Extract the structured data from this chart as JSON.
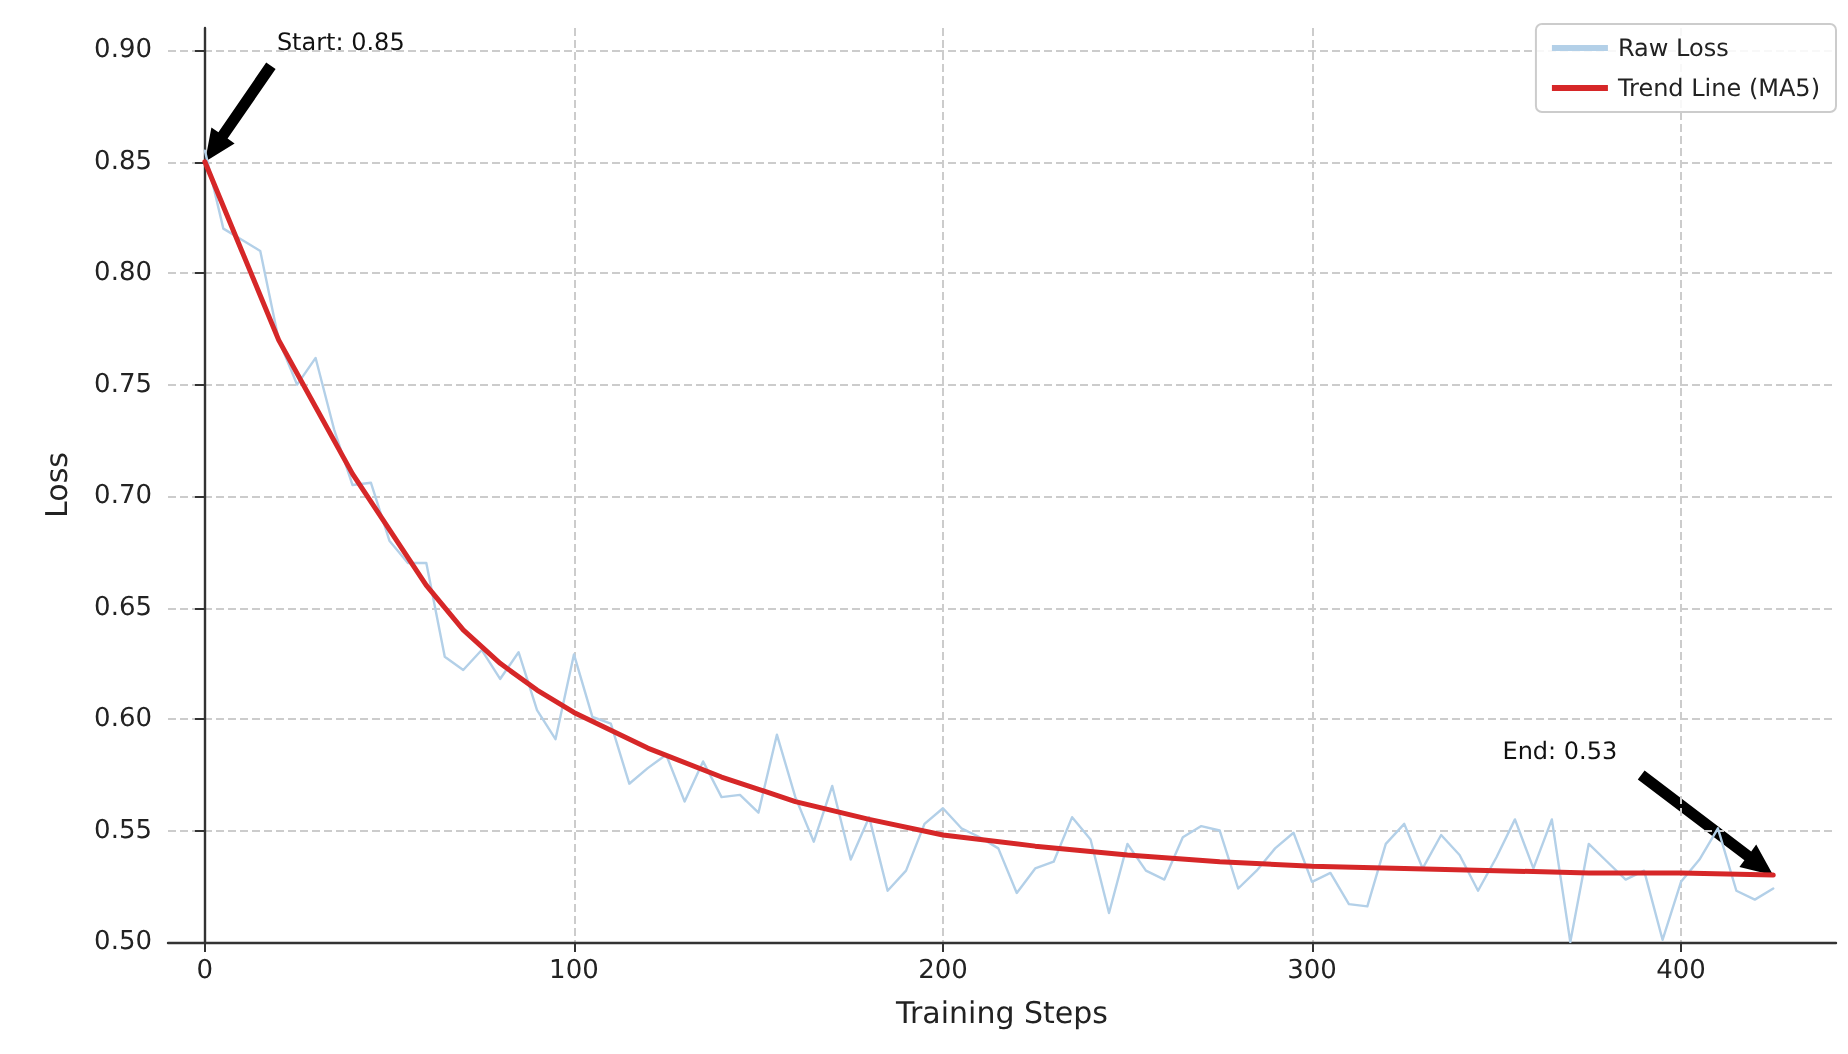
{
  "chart_data": {
    "type": "line",
    "xlabel": "Training Steps",
    "ylabel": "Loss",
    "xlim": [
      -10,
      442
    ],
    "xticks": [
      0,
      100,
      200,
      300,
      400
    ],
    "ylim": [
      0.5,
      0.91
    ],
    "yticks": [
      {
        "value": 0.5,
        "label": "0.50"
      },
      0.55,
      {
        "value": 0.6,
        "label": "0.60"
      },
      0.65,
      {
        "value": 0.7,
        "label": "0.70"
      },
      0.75,
      {
        "value": 0.8,
        "label": "0.80"
      },
      0.85,
      {
        "value": 0.9,
        "label": "0.90"
      }
    ],
    "grid": true,
    "legend": "top right",
    "marker": "none",
    "line_style": "solid",
    "annotations": [
      "Start: 0.85",
      "End: 0.53"
    ],
    "series": [
      {
        "name": "Raw Loss",
        "color": "#b3d0e8",
        "x": [
          0,
          5,
          10,
          15,
          20,
          25,
          30,
          35,
          40,
          45,
          50,
          55,
          60,
          65,
          70,
          75,
          80,
          85,
          90,
          95,
          100,
          105,
          110,
          115,
          120,
          125,
          130,
          135,
          140,
          145,
          150,
          155,
          160,
          165,
          170,
          175,
          180,
          185,
          190,
          195,
          200,
          205,
          210,
          215,
          220,
          225,
          230,
          235,
          240,
          245,
          250,
          255,
          260,
          265,
          270,
          275,
          280,
          285,
          290,
          295,
          300,
          305,
          310,
          315,
          320,
          325,
          330,
          335,
          340,
          345,
          350,
          355,
          360,
          365,
          370,
          375,
          380,
          385,
          390,
          395,
          400,
          405,
          410,
          415,
          420,
          425
        ],
        "values": [
          0.855,
          0.82,
          0.815,
          0.81,
          0.77,
          0.75,
          0.762,
          0.73,
          0.705,
          0.706,
          0.68,
          0.67,
          0.67,
          0.628,
          0.622,
          0.631,
          0.618,
          0.63,
          0.604,
          0.591,
          0.629,
          0.601,
          0.598,
          0.571,
          0.578,
          0.584,
          0.563,
          0.581,
          0.565,
          0.566,
          0.558,
          0.593,
          0.565,
          0.545,
          0.57,
          0.537,
          0.556,
          0.523,
          0.532,
          0.553,
          0.56,
          0.551,
          0.547,
          0.542,
          0.522,
          0.533,
          0.536,
          0.556,
          0.546,
          0.513,
          0.544,
          0.532,
          0.528,
          0.547,
          0.552,
          0.55,
          0.524,
          0.532,
          0.542,
          0.549,
          0.527,
          0.531,
          0.517,
          0.516,
          0.544,
          0.553,
          0.533,
          0.548,
          0.539,
          0.523,
          0.538,
          0.555,
          0.533,
          0.555,
          0.5,
          0.544,
          0.536,
          0.528,
          0.532,
          0.501,
          0.527,
          0.537,
          0.551,
          0.523,
          0.519,
          0.524
        ]
      },
      {
        "name": "Trend Line (MA5)",
        "color": "#d62728",
        "x": [
          0,
          10,
          20,
          30,
          40,
          50,
          60,
          70,
          80,
          90,
          100,
          120,
          140,
          160,
          180,
          200,
          225,
          250,
          275,
          300,
          325,
          350,
          375,
          400,
          425
        ],
        "values": [
          0.85,
          0.81,
          0.77,
          0.74,
          0.71,
          0.685,
          0.66,
          0.64,
          0.625,
          0.613,
          0.603,
          0.587,
          0.574,
          0.563,
          0.555,
          0.548,
          0.543,
          0.539,
          0.536,
          0.534,
          0.533,
          0.532,
          0.531,
          0.531,
          0.53
        ]
      }
    ]
  }
}
